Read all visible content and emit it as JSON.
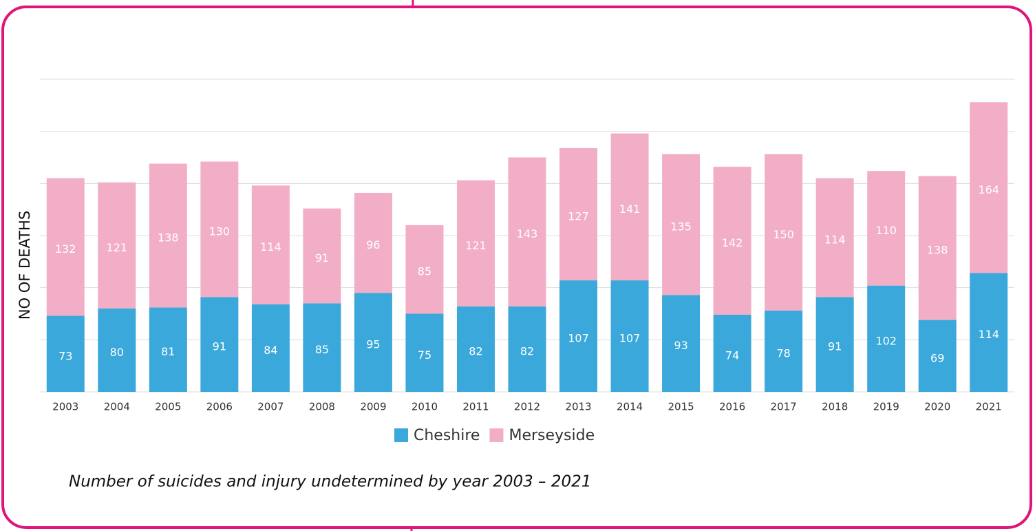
{
  "chart_data": {
    "type": "stacked_bar",
    "y_label": "NO OF DEATHS",
    "caption": "Number of suicides and injury undetermined by year 2003 – 2021",
    "categories": [
      "2003",
      "2004",
      "2005",
      "2006",
      "2007",
      "2008",
      "2009",
      "2010",
      "2011",
      "2012",
      "2013",
      "2014",
      "2015",
      "2016",
      "2017",
      "2018",
      "2019",
      "2020",
      "2021"
    ],
    "series": [
      {
        "name": "Cheshire",
        "color": "#3aa8da",
        "values": [
          73,
          80,
          81,
          91,
          84,
          85,
          95,
          75,
          82,
          82,
          107,
          107,
          93,
          74,
          78,
          91,
          102,
          69,
          114
        ]
      },
      {
        "name": "Merseyside",
        "color": "#f3aec7",
        "values": [
          132,
          121,
          138,
          130,
          114,
          91,
          96,
          85,
          121,
          143,
          127,
          141,
          135,
          142,
          150,
          114,
          110,
          138,
          164
        ]
      }
    ],
    "ylim": [
      0,
      300
    ],
    "yticks": [
      0,
      50,
      100,
      150,
      200,
      250,
      300
    ],
    "grid": true
  }
}
